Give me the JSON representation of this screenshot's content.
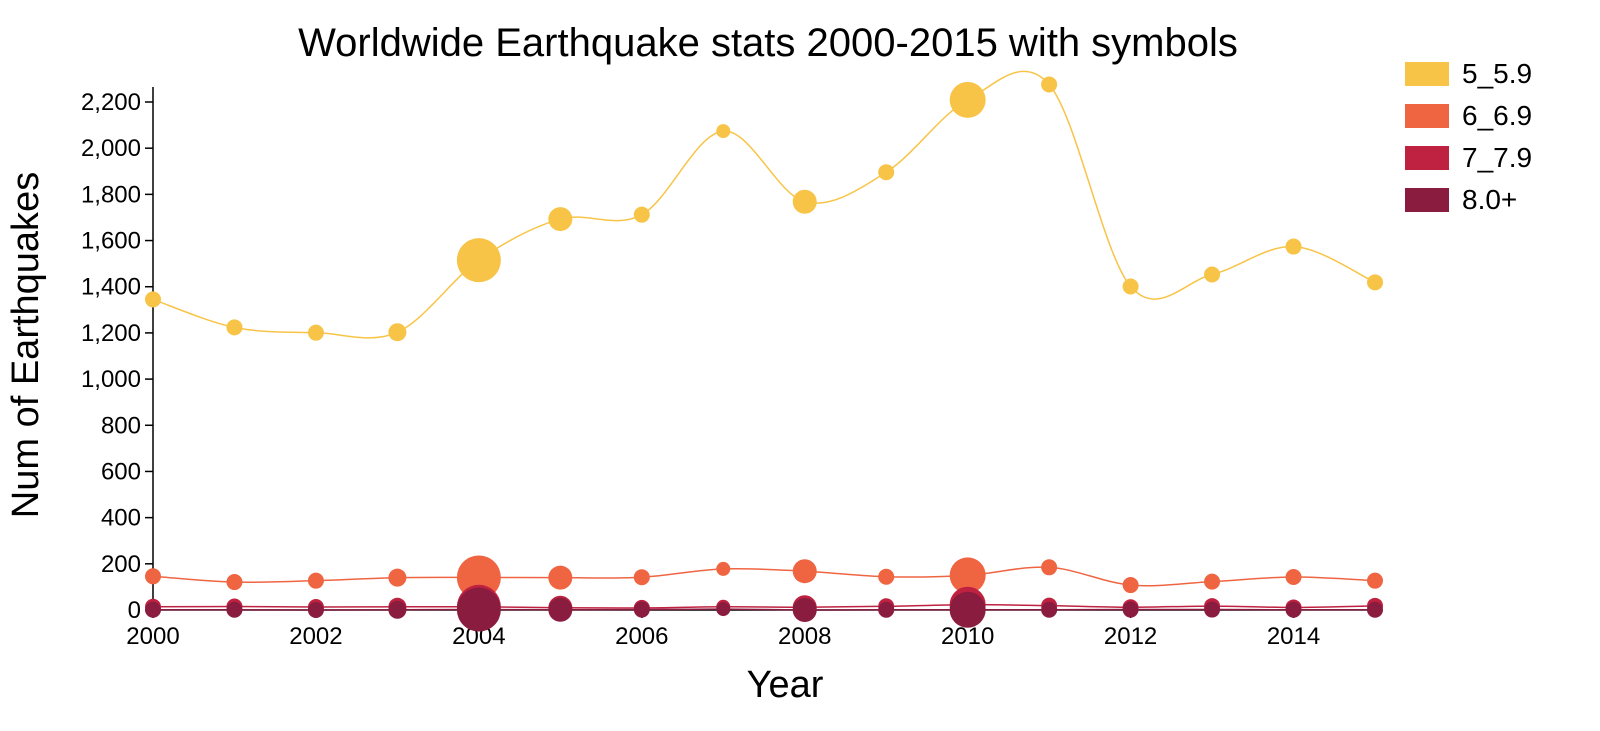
{
  "chart_data": {
    "type": "line",
    "title": "Worldwide Earthquake stats 2000-2015 with symbols",
    "xlabel": "Year",
    "ylabel": "Num of Earthquakes",
    "x": [
      2000,
      2001,
      2002,
      2003,
      2004,
      2005,
      2006,
      2007,
      2008,
      2009,
      2010,
      2011,
      2012,
      2013,
      2014,
      2015
    ],
    "xlim": [
      2000,
      2015
    ],
    "ylim": [
      0,
      2300
    ],
    "x_ticks": [
      "2000",
      "2002",
      "2004",
      "2006",
      "2008",
      "2010",
      "2012",
      "2014"
    ],
    "x_tick_values": [
      2000,
      2002,
      2004,
      2006,
      2008,
      2010,
      2012,
      2014
    ],
    "y_ticks": [
      "0",
      "200",
      "400",
      "600",
      "800",
      "1,000",
      "1,200",
      "1,400",
      "1,600",
      "1,800",
      "2,000",
      "2,200"
    ],
    "y_tick_values": [
      0,
      200,
      400,
      600,
      800,
      1000,
      1200,
      1400,
      1600,
      1800,
      2000,
      2200
    ],
    "grid": false,
    "legend_position": "top-right",
    "marker_size_note": "marker size encodes death toll magnitude",
    "marker_size": [
      8,
      8,
      8,
      9,
      22,
      12,
      8,
      7,
      12,
      8,
      18,
      8,
      8,
      8,
      8,
      8
    ],
    "series": [
      {
        "name": "5_5.9",
        "color": "#F8C447",
        "values": [
          1345,
          1224,
          1201,
          1203,
          1515,
          1693,
          1712,
          2074,
          1768,
          1896,
          2209,
          2276,
          1401,
          1453,
          1574,
          1419
        ]
      },
      {
        "name": "6_6.9",
        "color": "#EF6542",
        "values": [
          146,
          121,
          127,
          140,
          141,
          140,
          142,
          178,
          168,
          144,
          150,
          185,
          108,
          123,
          143,
          127
        ]
      },
      {
        "name": "7_7.9",
        "color": "#BE2240",
        "values": [
          14,
          15,
          13,
          14,
          14,
          10,
          9,
          14,
          12,
          16,
          23,
          19,
          12,
          17,
          11,
          18
        ]
      },
      {
        "name": "8.0+",
        "color": "#8A1C40",
        "values": [
          1,
          1,
          0,
          1,
          2,
          1,
          2,
          4,
          0,
          1,
          1,
          1,
          2,
          2,
          1,
          1
        ]
      }
    ]
  }
}
